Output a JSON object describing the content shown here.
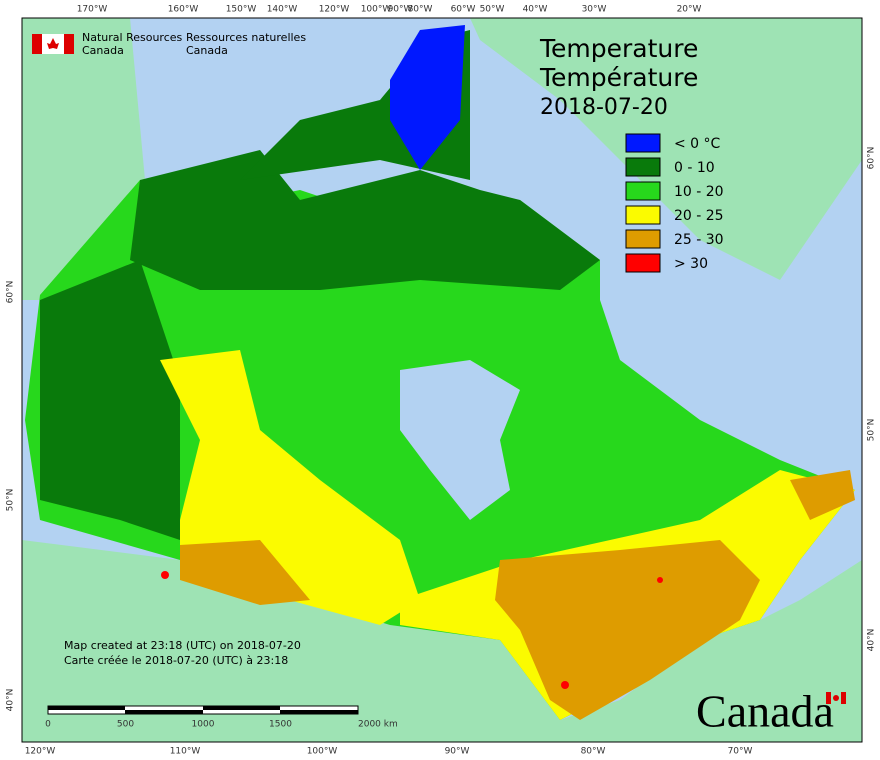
{
  "header": {
    "agency_en_1": "Natural Resources",
    "agency_en_2": "Canada",
    "agency_fr_1": "Ressources naturelles",
    "agency_fr_2": "Canada"
  },
  "title": {
    "line1": "Temperature",
    "line2": "Température",
    "date": "2018-07-20"
  },
  "legend": [
    {
      "label": "< 0 °C",
      "color": "#0018ff"
    },
    {
      "label": "0 - 10",
      "color": "#097a0b"
    },
    {
      "label": "10 - 20",
      "color": "#27d81c"
    },
    {
      "label": "20 - 25",
      "color": "#fbfb00"
    },
    {
      "label": "25 - 30",
      "color": "#de9c00"
    },
    {
      "label": "> 30",
      "color": "#ff0000"
    }
  ],
  "graticule": {
    "top": [
      "170°W",
      "160°W",
      "150°W",
      "140°W",
      "120°W",
      "100°W",
      "90°W",
      "80°W",
      "60°W",
      "50°W",
      "40°W",
      "30°W",
      "20°W"
    ],
    "bottom": [
      "120°W",
      "110°W",
      "100°W",
      "90°W",
      "80°W",
      "70°W"
    ],
    "left": [
      "60°N",
      "50°N",
      "40°N"
    ],
    "right": [
      "60°N",
      "50°N",
      "40°N"
    ]
  },
  "footer": {
    "created_en": "Map created at 23:18 (UTC) on 2018-07-20",
    "created_fr": "Carte créée le 2018-07-20 (UTC) à 23:18"
  },
  "scale_bar": [
    "0",
    "500",
    "1000",
    "1500",
    "2000 km"
  ],
  "wordmark": "Canada"
}
